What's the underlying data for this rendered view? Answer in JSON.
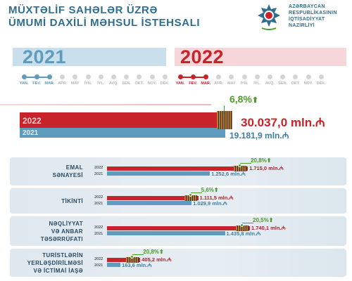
{
  "header": {
    "title_line1": "MÜXTƏLİF SAHƏLƏR ÜZRƏ",
    "title_line2": "ÜMUMİ DAXİLİ MƏHSUL İSTEHSALI",
    "ministry_line1": "AZƏRBAYCAN",
    "ministry_line2": "RESPUBLİKASININ",
    "ministry_line3": "İQTİSADİYYAT",
    "ministry_line4": "NAZİRLİYİ"
  },
  "timeline": {
    "year_prev": "2021",
    "year_curr": "2022",
    "months": [
      "YAN.",
      "FEV.",
      "MAR.",
      "APR.",
      "MAY",
      "İYN.",
      "İYL.",
      "AVQ.",
      "SEN.",
      "OKT.",
      "NOY.",
      "DEK."
    ],
    "active_months": 3
  },
  "colors": {
    "red": "#c8232b",
    "blue": "#5e9bbd",
    "green": "#4f9a2a",
    "title": "#2f6e8e"
  },
  "chart_data": [
    {
      "type": "bar",
      "title": "",
      "categories": [
        "Total"
      ],
      "series": [
        {
          "name": "2022",
          "values": [
            30037.0
          ],
          "label": "30.037,0 mln."
        },
        {
          "name": "2021",
          "values": [
            19181.9
          ],
          "label": "19.181,9 mln."
        }
      ],
      "growth": "6,8%",
      "currency": "₼"
    },
    {
      "type": "bar",
      "categories": [
        "EMAL SƏNAYESİ",
        "TİKİNTİ",
        "NƏQLİYYAT VƏ ANBAR TƏSƏRRÜFATI",
        "TURİSTLƏRİN YERLƏŞDİRİLMƏSİ VƏ İCTİMAİ İAŞƏ"
      ],
      "series": [
        {
          "name": "2022",
          "values": [
            1715.0,
            1111.5,
            1740.1,
            405.2
          ],
          "labels": [
            "1.715,0 mln.",
            "1.111,5 mln.",
            "1.740,1 mln.",
            "405,2 mln."
          ]
        },
        {
          "name": "2021",
          "values": [
            1252.6,
            1029.9,
            1435.8,
            163.6
          ],
          "labels": [
            "1.252,6 mln.",
            "1.029,9 mln.",
            "1.435,8 mln.",
            "163,6 mln."
          ]
        }
      ],
      "growth": [
        "20,8%",
        "5,6%",
        "20,5%",
        "20,8%"
      ],
      "currency": "₼"
    }
  ],
  "sectors": [
    {
      "line1": "EMAL",
      "line2": "SƏNAYESİ",
      "line3": ""
    },
    {
      "line1": "TİKİNTİ",
      "line2": "",
      "line3": ""
    },
    {
      "line1": "NƏQLİYYAT",
      "line2": "VƏ ANBAR",
      "line3": "TƏSƏRRÜFATI"
    },
    {
      "line1": "TURİSTLƏRİN",
      "line2": "YERLƏŞDİRİLMƏSİ",
      "line3": "VƏ İCTİMAİ İAŞƏ"
    }
  ]
}
